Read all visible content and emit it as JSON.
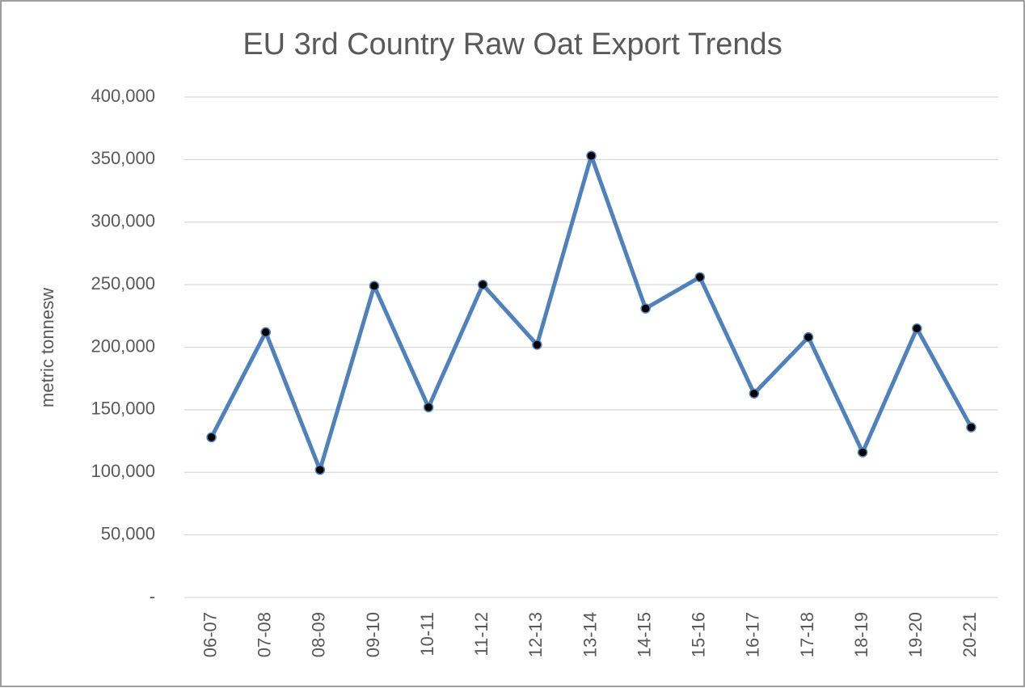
{
  "chart_data": {
    "type": "line",
    "title": "EU 3rd Country Raw Oat Export Trends",
    "y_label": "metric tonnesw",
    "categories": [
      "06-07",
      "07-08",
      "08-09",
      "09-10",
      "10-11",
      "11-12",
      "12-13",
      "13-14",
      "14-15",
      "15-16",
      "16-17",
      "17-18",
      "18-19",
      "19-20",
      "20-21"
    ],
    "series": [
      {
        "color": "#4f81bd",
        "marker_color": "#000000",
        "values": [
          128000,
          212000,
          102000,
          249000,
          152000,
          250000,
          202000,
          353000,
          231000,
          256000,
          163000,
          208000,
          116000,
          215000,
          136000
        ]
      }
    ],
    "ylim": [
      0,
      400000
    ],
    "yticks": [
      {
        "value": 0,
        "label": "-"
      },
      {
        "value": 50000,
        "label": "50,000"
      },
      {
        "value": 100000,
        "label": "100,000"
      },
      {
        "value": 150000,
        "label": "150,000"
      },
      {
        "value": 200000,
        "label": "200,000"
      },
      {
        "value": 250000,
        "label": "250,000"
      },
      {
        "value": 300000,
        "label": "300,000"
      },
      {
        "value": 350000,
        "label": "350,000"
      },
      {
        "value": 400000,
        "label": "400,000"
      }
    ],
    "grid": true
  }
}
